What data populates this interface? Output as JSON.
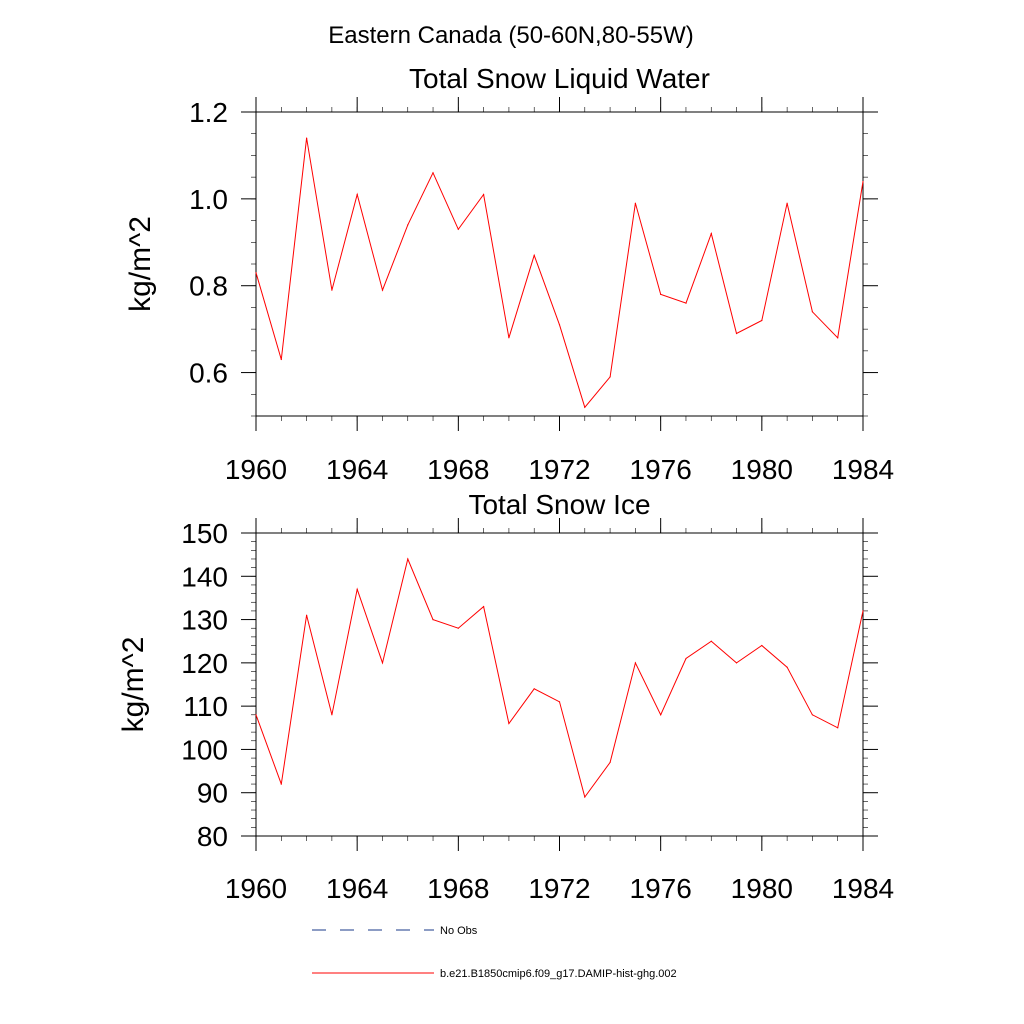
{
  "figure_title": "Eastern Canada (50-60N,80-55W)",
  "chart_data": [
    {
      "type": "line",
      "title": "Total Snow Liquid Water",
      "xlabel": "",
      "ylabel": "kg/m^2",
      "xlim": [
        1960,
        1984
      ],
      "ylim": [
        0.5,
        1.2
      ],
      "x_ticks": [
        1960,
        1964,
        1968,
        1972,
        1976,
        1980,
        1984
      ],
      "y_ticks": [
        0.6,
        0.8,
        1.0,
        1.2
      ],
      "y_tick_labels": [
        "0.6",
        "0.8",
        "1.0",
        "1.2"
      ],
      "grid": false,
      "series": [
        {
          "name": "b.e21.B1850cmip6.f09_g17.DAMIP-hist-ghg.002",
          "color": "#ff0000",
          "x": [
            1960,
            1961,
            1962,
            1963,
            1964,
            1965,
            1966,
            1967,
            1968,
            1969,
            1970,
            1971,
            1972,
            1973,
            1974,
            1975,
            1976,
            1977,
            1978,
            1979,
            1980,
            1981,
            1982,
            1983,
            1984
          ],
          "y": [
            0.83,
            0.63,
            1.14,
            0.79,
            1.01,
            0.79,
            0.94,
            1.06,
            0.93,
            1.01,
            0.68,
            0.87,
            0.71,
            0.52,
            0.59,
            0.99,
            0.78,
            0.76,
            0.92,
            0.69,
            0.72,
            0.99,
            0.74,
            0.68,
            1.04
          ]
        }
      ]
    },
    {
      "type": "line",
      "title": "Total Snow Ice",
      "xlabel": "",
      "ylabel": "kg/m^2",
      "xlim": [
        1960,
        1984
      ],
      "ylim": [
        80,
        150
      ],
      "x_ticks": [
        1960,
        1964,
        1968,
        1972,
        1976,
        1980,
        1984
      ],
      "y_ticks": [
        80,
        90,
        100,
        110,
        120,
        130,
        140,
        150
      ],
      "y_tick_labels": [
        "80",
        "90",
        "100",
        "110",
        "120",
        "130",
        "140",
        "150"
      ],
      "grid": false,
      "series": [
        {
          "name": "b.e21.B1850cmip6.f09_g17.DAMIP-hist-ghg.002",
          "color": "#ff0000",
          "x": [
            1960,
            1961,
            1962,
            1963,
            1964,
            1965,
            1966,
            1967,
            1968,
            1969,
            1970,
            1971,
            1972,
            1973,
            1974,
            1975,
            1976,
            1977,
            1978,
            1979,
            1980,
            1981,
            1982,
            1983,
            1984
          ],
          "y": [
            108,
            92,
            131,
            108,
            137,
            120,
            144,
            130,
            128,
            133,
            106,
            114,
            111,
            89,
            97,
            120,
            108,
            121,
            125,
            120,
            124,
            119,
            108,
            105,
            132
          ]
        }
      ]
    }
  ],
  "legend": {
    "placement": "bottom",
    "items": [
      {
        "label": "No Obs",
        "color": "#1a3a8a",
        "style": "dashed"
      },
      {
        "label": "b.e21.B1850cmip6.f09_g17.DAMIP-hist-ghg.002",
        "color": "#ff0000",
        "style": "solid"
      }
    ]
  }
}
